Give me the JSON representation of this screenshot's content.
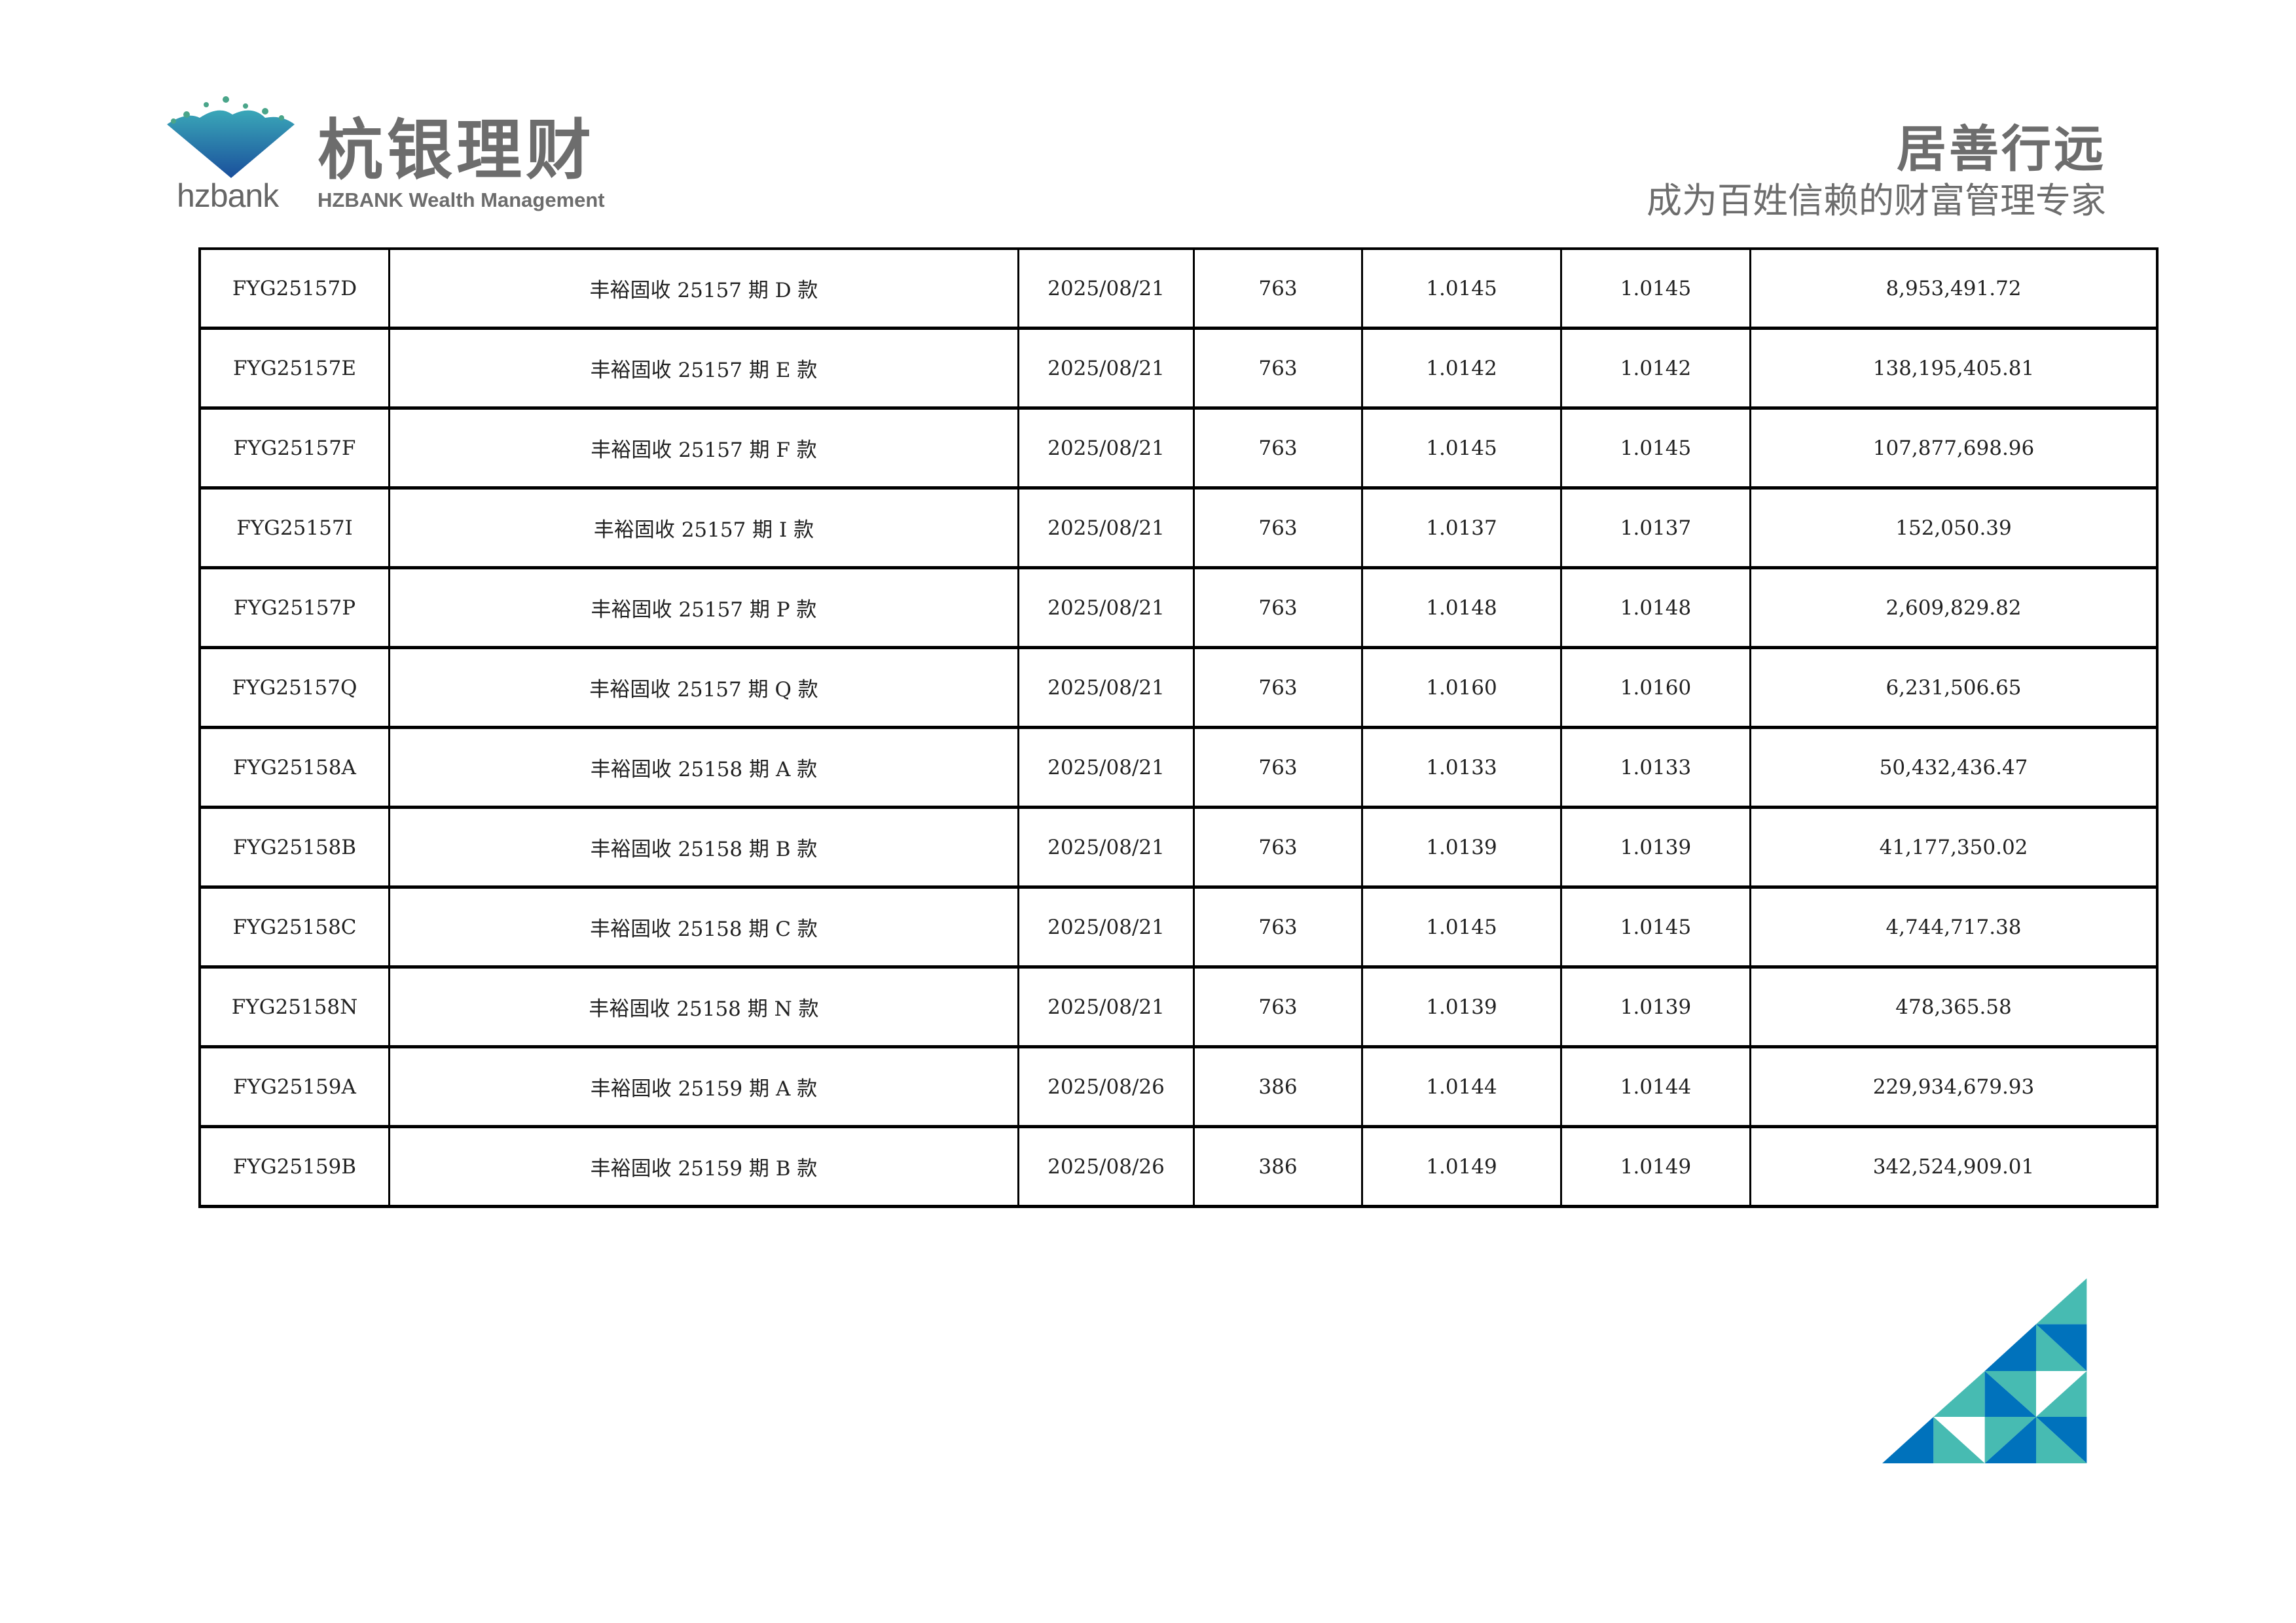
{
  "header": {
    "logo_en": "hzbank",
    "logo_cn": "杭银理财",
    "logo_sub": "HZBANK Wealth Management",
    "slogan_main": "居善行远",
    "slogan_sub": "成为百姓信赖的财富管理专家"
  },
  "colors": {
    "teal": "#47bbb2",
    "blue": "#0072bc",
    "text_gray": "#6d6d6d"
  },
  "table": {
    "rows": [
      [
        "FYG25157D",
        "丰裕固收 25157 期 D 款",
        "2025/08/21",
        "763",
        "1.0145",
        "1.0145",
        "8,953,491.72"
      ],
      [
        "FYG25157E",
        "丰裕固收 25157 期 E 款",
        "2025/08/21",
        "763",
        "1.0142",
        "1.0142",
        "138,195,405.81"
      ],
      [
        "FYG25157F",
        "丰裕固收 25157 期 F 款",
        "2025/08/21",
        "763",
        "1.0145",
        "1.0145",
        "107,877,698.96"
      ],
      [
        "FYG25157I",
        "丰裕固收 25157 期 I 款",
        "2025/08/21",
        "763",
        "1.0137",
        "1.0137",
        "152,050.39"
      ],
      [
        "FYG25157P",
        "丰裕固收 25157 期 P 款",
        "2025/08/21",
        "763",
        "1.0148",
        "1.0148",
        "2,609,829.82"
      ],
      [
        "FYG25157Q",
        "丰裕固收 25157 期 Q 款",
        "2025/08/21",
        "763",
        "1.0160",
        "1.0160",
        "6,231,506.65"
      ],
      [
        "FYG25158A",
        "丰裕固收 25158 期 A 款",
        "2025/08/21",
        "763",
        "1.0133",
        "1.0133",
        "50,432,436.47"
      ],
      [
        "FYG25158B",
        "丰裕固收 25158 期 B 款",
        "2025/08/21",
        "763",
        "1.0139",
        "1.0139",
        "41,177,350.02"
      ],
      [
        "FYG25158C",
        "丰裕固收 25158 期 C 款",
        "2025/08/21",
        "763",
        "1.0145",
        "1.0145",
        "4,744,717.38"
      ],
      [
        "FYG25158N",
        "丰裕固收 25158 期 N 款",
        "2025/08/21",
        "763",
        "1.0139",
        "1.0139",
        "478,365.58"
      ],
      [
        "FYG25159A",
        "丰裕固收 25159 期 A 款",
        "2025/08/26",
        "386",
        "1.0144",
        "1.0144",
        "229,934,679.93"
      ],
      [
        "FYG25159B",
        "丰裕固收 25159 期 B 款",
        "2025/08/26",
        "386",
        "1.0149",
        "1.0149",
        "342,524,909.01"
      ]
    ]
  }
}
